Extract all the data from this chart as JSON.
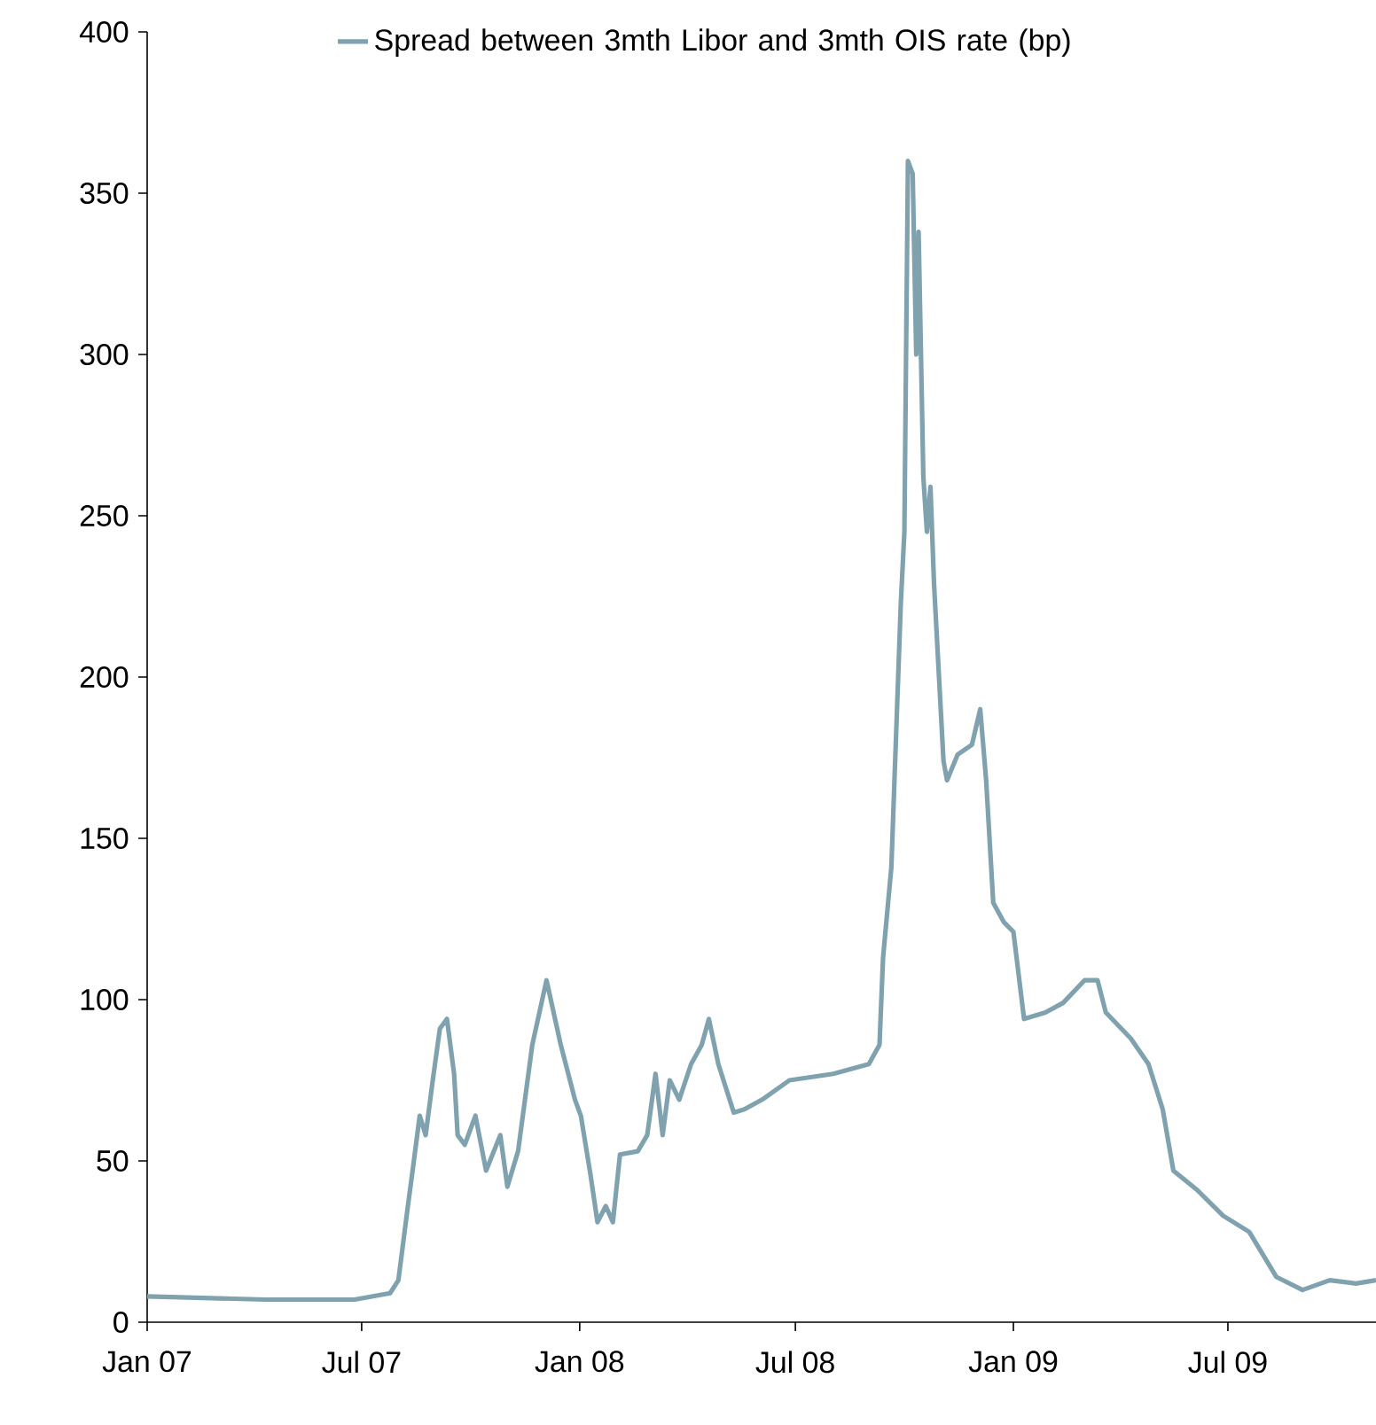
{
  "chart_data": {
    "type": "line",
    "x": [
      "2007-01-01",
      "2007-04-11",
      "2007-06-25",
      "2007-07-25",
      "2007-08-01",
      "2007-08-09",
      "2007-08-13",
      "2007-08-19",
      "2007-08-24",
      "2007-08-30",
      "2007-09-05",
      "2007-09-11",
      "2007-09-17",
      "2007-09-20",
      "2007-09-26",
      "2007-10-05",
      "2007-10-14",
      "2007-10-26",
      "2007-11-01",
      "2007-11-10",
      "2007-11-22",
      "2007-12-04",
      "2007-12-16",
      "2007-12-28",
      "2008-01-02",
      "2008-01-10",
      "2008-01-16",
      "2008-01-23",
      "2008-01-29",
      "2008-02-04",
      "2008-02-19",
      "2008-02-27",
      "2008-03-05",
      "2008-03-11",
      "2008-03-17",
      "2008-03-25",
      "2008-04-04",
      "2008-04-13",
      "2008-04-19",
      "2008-04-27",
      "2008-05-10",
      "2008-05-19",
      "2008-06-03",
      "2008-06-26",
      "2008-08-02",
      "2008-09-01",
      "2008-09-10",
      "2008-09-13",
      "2008-09-20",
      "2008-09-28",
      "2008-10-01",
      "2008-10-04",
      "2008-10-08",
      "2008-10-11",
      "2008-10-13",
      "2008-10-17",
      "2008-10-20",
      "2008-10-23",
      "2008-10-26",
      "2008-11-03",
      "2008-11-06",
      "2008-11-15",
      "2008-11-27",
      "2008-12-04",
      "2008-12-09",
      "2008-12-15",
      "2008-12-24",
      "2009-01-01",
      "2009-01-10",
      "2009-01-28",
      "2009-02-12",
      "2009-03-02",
      "2009-03-13",
      "2009-03-20",
      "2009-04-10",
      "2009-04-25",
      "2009-05-07",
      "2009-05-16",
      "2009-06-05",
      "2009-06-27",
      "2009-07-19",
      "2009-08-11",
      "2009-09-02",
      "2009-09-25",
      "2009-10-17",
      "2009-11-03"
    ],
    "series": [
      {
        "name": "Spread between 3mth Libor and 3mth OIS rate (bp)",
        "color": "#7fa2ae",
        "values": [
          8,
          7,
          7,
          9,
          13,
          36,
          47,
          64,
          58,
          75,
          91,
          94,
          77,
          58,
          55,
          64,
          47,
          58,
          42,
          53,
          86,
          106,
          86,
          69,
          64,
          46,
          31,
          36,
          31,
          52,
          53,
          58,
          77,
          58,
          75,
          69,
          80,
          86,
          94,
          80,
          65,
          66,
          69,
          75,
          77,
          80,
          86,
          113,
          141,
          223,
          245,
          360,
          356,
          300,
          338,
          262,
          245,
          259,
          229,
          174,
          168,
          176,
          179,
          190,
          168,
          130,
          124,
          121,
          94,
          96,
          99,
          106,
          106,
          96,
          88,
          80,
          66,
          47,
          41,
          33,
          28,
          14,
          10,
          13,
          12,
          13
        ]
      }
    ],
    "xlim": [
      "2007-01-01",
      "2009-11-03"
    ],
    "xticks": [
      {
        "value": "2007-01-01",
        "label": "Jan 07"
      },
      {
        "value": "2007-07-01",
        "label": "Jul 07"
      },
      {
        "value": "2008-01-01",
        "label": "Jan 08"
      },
      {
        "value": "2008-07-01",
        "label": "Jul 08"
      },
      {
        "value": "2009-01-01",
        "label": "Jan 09"
      },
      {
        "value": "2009-07-01",
        "label": "Jul 09"
      }
    ],
    "ylim": [
      0,
      400
    ],
    "yticks": [
      0,
      50,
      100,
      150,
      200,
      250,
      300,
      350,
      400
    ],
    "grid": false,
    "legend": "top right",
    "marker": "none",
    "line_style": "solid"
  }
}
